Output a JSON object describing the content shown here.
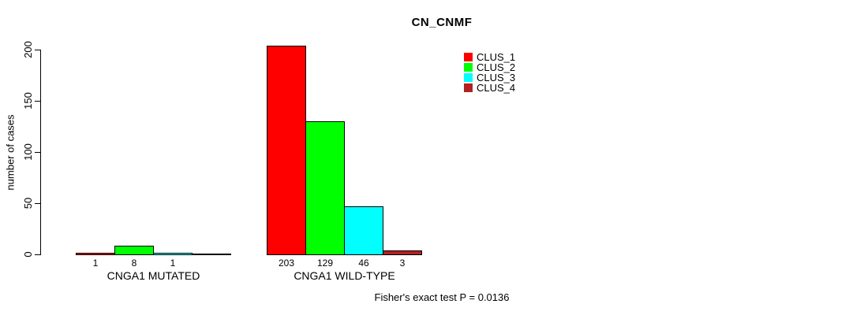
{
  "chart_data": {
    "type": "bar",
    "title": "CN_CNMF",
    "ylabel": "number of cases",
    "xlabel": "",
    "ylim": [
      0,
      200
    ],
    "yticks": [
      0,
      50,
      100,
      150,
      200
    ],
    "grid": false,
    "legend_position": "top-right-inside",
    "categories": [
      "CNGA1 MUTATED",
      "CNGA1 WILD-TYPE"
    ],
    "series": [
      {
        "name": "CLUS_1",
        "color": "#ff0000",
        "values": [
          1,
          203
        ]
      },
      {
        "name": "CLUS_2",
        "color": "#00ff00",
        "values": [
          8,
          129
        ]
      },
      {
        "name": "CLUS_3",
        "color": "#00ffff",
        "values": [
          1,
          46
        ]
      },
      {
        "name": "CLUS_4",
        "color": "#b22222",
        "values": [
          0,
          3
        ]
      }
    ],
    "bar_labels": [
      [
        "1",
        "8",
        "1",
        ""
      ],
      [
        "203",
        "129",
        "46",
        "3"
      ]
    ],
    "annotation": "Fisher's exact test P = 0.0136",
    "axis_color": "#000000",
    "background_color": "#ffffff"
  }
}
